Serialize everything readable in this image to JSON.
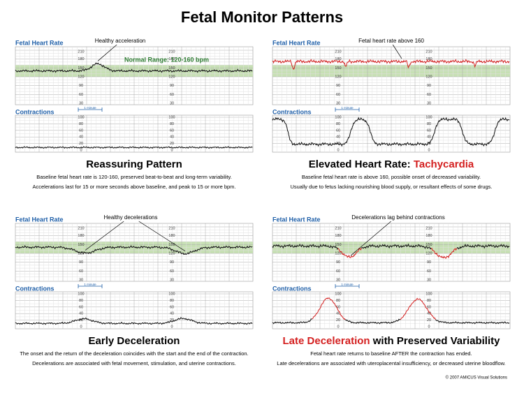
{
  "header": {
    "title": "Fetal Monitor Patterns"
  },
  "fhr_scale": [
    210,
    180,
    150,
    120,
    90,
    60,
    30
  ],
  "uc_scale": [
    100,
    80,
    60,
    40,
    20,
    0
  ],
  "panels": [
    {
      "fhr_label": "Fetal Heart Rate",
      "contractions_label": "Contractions",
      "minute_label": "1 minute",
      "annotation": "Healthy acceleration",
      "range_label": "Normal Range: 120-160 bpm",
      "title": [
        {
          "text": "Reassuring Pattern",
          "color": "#000000"
        }
      ],
      "description": [
        "Baseline fetal heart rate is 120-160, preserved beat-to-beat and long-term variability.",
        "Accelerations last for 15 or more seconds above baseline, and peak to 15 or more bpm."
      ]
    },
    {
      "fhr_label": "Fetal Heart Rate",
      "contractions_label": "Contractions",
      "minute_label": "1 minute",
      "annotation": "Fetal heart rate above 160",
      "title": [
        {
          "text": "Elevated Heart Rate: ",
          "color": "#000000"
        },
        {
          "text": "Tachycardia",
          "color": "#d42020"
        }
      ],
      "description": [
        "Baseline fetal heart rate is above 160, possible onset of decreased variability.",
        "Usually due to fetus lacking nourishing blood supply, or resultant effects of some drugs."
      ]
    },
    {
      "fhr_label": "Fetal Heart Rate",
      "contractions_label": "Contractions",
      "minute_label": "1 minute",
      "annotation": "Healthy decelerations",
      "title": [
        {
          "text": "Early Deceleration",
          "color": "#000000"
        }
      ],
      "description": [
        "The onset and the return of the deceleration coincides with the start and the end of the contraction.",
        "Decelerations are associated with fetal movement, stimulation, and uterine contractions."
      ]
    },
    {
      "fhr_label": "Fetal Heart Rate",
      "contractions_label": "Contractions",
      "minute_label": "1 minute",
      "annotation": "Decelerations lag behind contractions",
      "title": [
        {
          "text": "Late Deceleration",
          "color": "#d42020"
        },
        {
          "text": " with Preserved Variability",
          "color": "#000000"
        }
      ],
      "description": [
        "Fetal heart rate returns to baseline AFTER the contraction has ended.",
        "Late decelerations are associated with uteroplacental insufficiency, or decreased uterine bloodflow."
      ]
    }
  ],
  "footer": {
    "copyright": "© 2007 AMICUS Visual Solutions"
  }
}
